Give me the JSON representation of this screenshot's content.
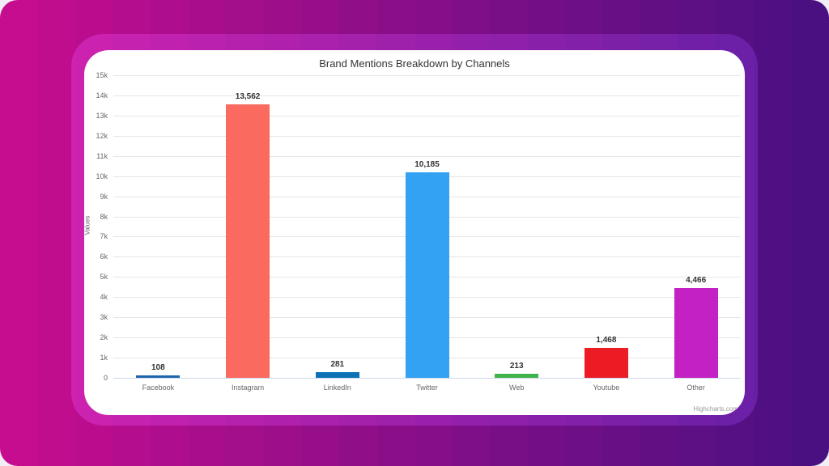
{
  "page": {
    "outer_background": "#f2eef7"
  },
  "background": {
    "gradient_from": "#c60d8f",
    "gradient_to": "#4a1082",
    "band_count": 22
  },
  "frame": {
    "gradient_from": "#d622b0",
    "gradient_to": "#611fa6",
    "band_count": 22
  },
  "credit": {
    "label": "Highcharts.com"
  },
  "chart_data": {
    "type": "bar",
    "title": "Brand Mentions Breakdown by Channels",
    "xlabel": "",
    "ylabel": "Values",
    "categories": [
      "Facebook",
      "Instagram",
      "LinkedIn",
      "Twitter",
      "Web",
      "Youtube",
      "Other"
    ],
    "values": [
      108,
      13562,
      281,
      10185,
      213,
      1468,
      4466
    ],
    "value_labels": [
      "108",
      "13,562",
      "281",
      "10,185",
      "213",
      "1,468",
      "4,466"
    ],
    "bar_colors": [
      "#2066ae",
      "#fb6a5f",
      "#0c72b5",
      "#33a2f2",
      "#3eb54b",
      "#ec1c24",
      "#c321c3"
    ],
    "ylim": [
      0,
      15000
    ],
    "ytick_step": 1000,
    "ytick_labels": [
      "0",
      "1k",
      "2k",
      "3k",
      "4k",
      "5k",
      "6k",
      "7k",
      "8k",
      "9k",
      "10k",
      "11k",
      "12k",
      "13k",
      "14k",
      "15k"
    ],
    "grid": true,
    "legend": false,
    "title_color": "#333333",
    "gridline_color": "#e6e6e6",
    "axis_line_color": "#ccd6eb",
    "tick_label_color": "#666666",
    "data_label_color": "#333333"
  }
}
